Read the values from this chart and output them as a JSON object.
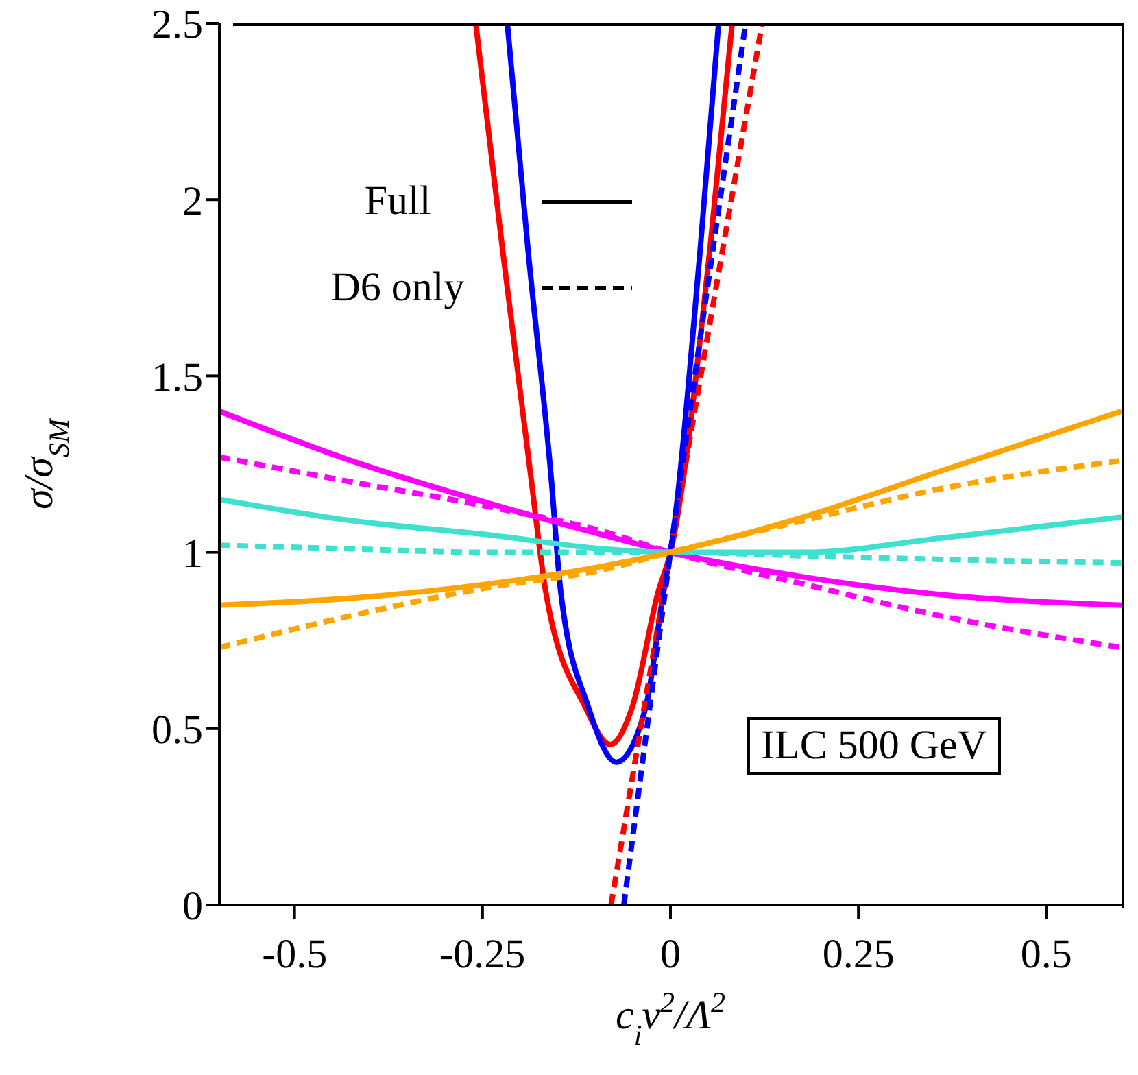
{
  "chart_data": {
    "type": "line",
    "xlabel": "c$_{i}$v$^{2}$/Λ$^{2}$",
    "ylabel": "σ/σ$_{SM}$",
    "xlim": [
      -0.6,
      0.6
    ],
    "xticks": [
      -0.5,
      -0.25,
      0,
      0.25,
      0.5
    ],
    "ylim": [
      0,
      2.5
    ],
    "yticks": [
      0,
      0.5,
      1,
      1.5,
      2,
      2.5
    ],
    "marker": "none",
    "annotations": [
      "Full",
      "D6 only",
      "ILC 500 GeV"
    ],
    "series": [
      {
        "color": "#ff0000",
        "line_style": "solid",
        "x": [
          -0.259,
          -0.224,
          -0.186,
          -0.166,
          -0.113,
          -0.08,
          -0.051,
          -0.016,
          0,
          0.053,
          0.082
        ],
        "values": [
          2.5,
          1.87,
          1.22,
          0.89,
          0.56,
          0.455,
          0.56,
          0.89,
          1,
          1.87,
          2.5
        ]
      },
      {
        "color": "#0000ff",
        "line_style": "solid",
        "x": [
          -0.217,
          -0.19,
          -0.159,
          -0.146,
          -0.109,
          -0.072,
          -0.033,
          -0.009,
          0,
          0.04,
          0.064
        ],
        "values": [
          2.5,
          1.87,
          1.22,
          0.89,
          0.56,
          0.405,
          0.56,
          0.89,
          1,
          1.87,
          2.5
        ]
      },
      {
        "color": "#ff0000",
        "line_style": "dashed",
        "x": [
          -0.079,
          0,
          0.122
        ],
        "values": [
          0,
          1,
          2.5
        ]
      },
      {
        "color": "#0000ff",
        "line_style": "dashed",
        "x": [
          -0.062,
          0,
          0.1
        ],
        "values": [
          0,
          1,
          2.5
        ]
      },
      {
        "color": "#ff00ff",
        "line_style": "solid",
        "x": [
          -0.6,
          -0.425,
          -0.243,
          -0.091,
          0,
          0.177,
          0.359,
          0.6
        ],
        "values": [
          1.4,
          1.26,
          1.14,
          1.05,
          1,
          0.93,
          0.88,
          0.85
        ]
      },
      {
        "color": "#ff00ff",
        "line_style": "dashed",
        "x": [
          -0.6,
          -0.425,
          -0.243,
          -0.091,
          0,
          0.177,
          0.359,
          0.6
        ],
        "values": [
          1.27,
          1.2,
          1.13,
          1.06,
          1,
          0.91,
          0.82,
          0.73
        ]
      },
      {
        "color": "#40e0d0",
        "line_style": "solid",
        "x": [
          -0.6,
          -0.425,
          -0.243,
          -0.091,
          0,
          0.177,
          0.359,
          0.6
        ],
        "values": [
          1.15,
          1.09,
          1.05,
          1.01,
          1,
          1,
          1.04,
          1.1
        ]
      },
      {
        "color": "#40e0d0",
        "line_style": "dashed",
        "x": [
          -0.6,
          -0.425,
          -0.243,
          -0.091,
          0,
          0.177,
          0.359,
          0.6
        ],
        "values": [
          1.02,
          1.01,
          1,
          1,
          1,
          0.99,
          0.98,
          0.97
        ]
      },
      {
        "color": "#ffa500",
        "line_style": "solid",
        "x": [
          -0.6,
          -0.425,
          -0.243,
          -0.091,
          0,
          0.177,
          0.359,
          0.6
        ],
        "values": [
          0.85,
          0.87,
          0.91,
          0.96,
          1,
          1.1,
          1.23,
          1.4
        ]
      },
      {
        "color": "#ffa500",
        "line_style": "dashed",
        "x": [
          -0.6,
          -0.425,
          -0.243,
          -0.091,
          0,
          0.177,
          0.359,
          0.6
        ],
        "values": [
          0.73,
          0.82,
          0.9,
          0.95,
          1,
          1.09,
          1.18,
          1.26
        ]
      }
    ]
  }
}
